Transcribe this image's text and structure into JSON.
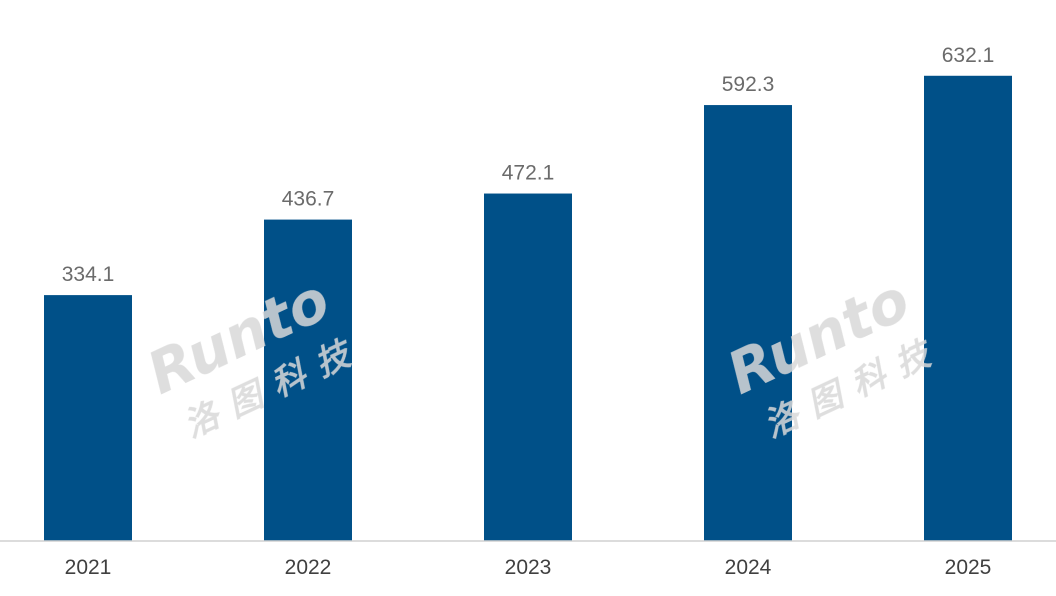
{
  "colors": {
    "bar": "#005088",
    "axis": "#d0d0d0",
    "value_label": "#6b6b6b",
    "tick_label": "#404040",
    "watermark": "#d9d9d9"
  },
  "watermark": {
    "brand": "Runto",
    "subtitle": "洛图科技"
  },
  "chart_data": {
    "type": "bar",
    "categories": [
      "2021",
      "2022",
      "2023",
      "2024",
      "2025"
    ],
    "values": [
      334.1,
      436.7,
      472.1,
      592.3,
      632.1
    ],
    "value_labels": [
      "334.1",
      "436.7",
      "472.1",
      "592.3",
      "632.1"
    ],
    "title": "",
    "xlabel": "",
    "ylabel": "",
    "ylim": [
      0,
      650
    ],
    "grid": false,
    "legend": "none"
  }
}
